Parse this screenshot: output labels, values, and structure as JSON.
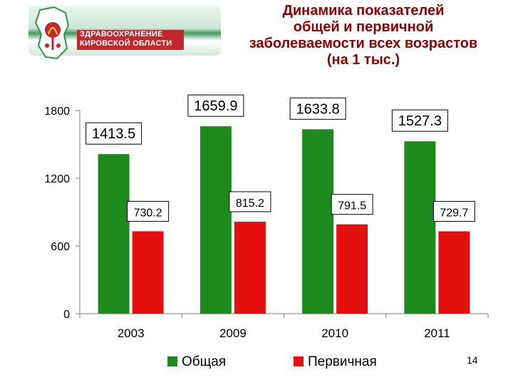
{
  "header": {
    "logo_line1": "ЗДРАВООХРАНЕНИЕ",
    "logo_line2": "КИРОВСКОЙ ОБЛАСТИ",
    "title_lines": [
      "Динамика показателей",
      "общей и первичной",
      "заболеваемости всех возрастов",
      "(на 1 тыс.)"
    ]
  },
  "chart_data": {
    "type": "bar",
    "categories": [
      "2003",
      "2009",
      "2010",
      "2011"
    ],
    "series": [
      {
        "name": "Общая",
        "color": "#1e8a1e",
        "values": [
          1413.5,
          1659.9,
          1633.8,
          1527.3
        ],
        "labels": [
          "1413.5",
          "1659.9",
          "1633.8",
          "1527.3"
        ]
      },
      {
        "name": "Первичная",
        "color": "#e41010",
        "values": [
          730.2,
          815.2,
          791.5,
          729.7
        ],
        "labels": [
          "730.2",
          "815.2",
          "791.5",
          "729.7"
        ]
      }
    ],
    "yticks": [
      "0",
      "600",
      "1200",
      "1800"
    ],
    "ylim": [
      0,
      1800
    ],
    "grid": false,
    "legend_position": "bottom"
  },
  "footer": {
    "page_number": "14"
  },
  "colors": {
    "title": "#8b0000",
    "logo_red": "#c2272d",
    "logo_green": "#2f8f4e"
  }
}
